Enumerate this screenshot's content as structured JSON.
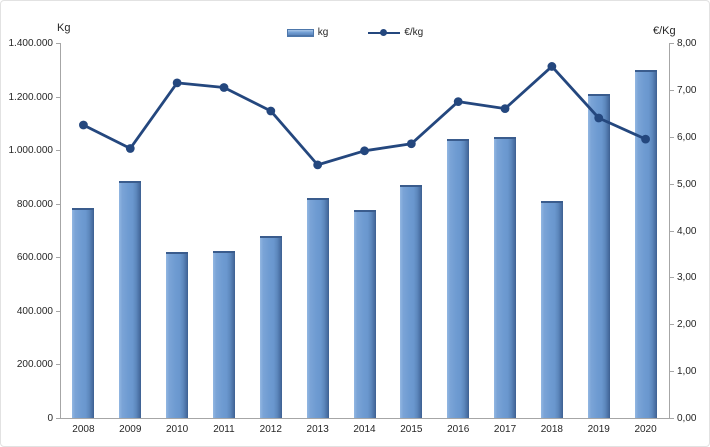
{
  "chart_data": {
    "type": "combo_bar_line",
    "title": "",
    "categories": [
      "2008",
      "2009",
      "2010",
      "2011",
      "2012",
      "2013",
      "2014",
      "2015",
      "2016",
      "2017",
      "2018",
      "2019",
      "2020"
    ],
    "series": [
      {
        "name": "kg",
        "type": "bar",
        "axis": "left",
        "values": [
          785000,
          885000,
          620000,
          625000,
          680000,
          820000,
          775000,
          870000,
          1040000,
          1050000,
          810000,
          1210000,
          1300000
        ]
      },
      {
        "name": "€/kg",
        "type": "line",
        "axis": "right",
        "values": [
          6.25,
          5.75,
          7.15,
          7.05,
          6.55,
          5.4,
          5.7,
          5.85,
          6.75,
          6.6,
          7.5,
          6.4,
          5.95
        ]
      }
    ],
    "left_axis": {
      "title": "Kg",
      "min": 0,
      "max": 1400000,
      "tick_step": 200000,
      "tick_labels": [
        "0",
        "200.000",
        "400.000",
        "600.000",
        "800.000",
        "1.000.000",
        "1.200.000",
        "1.400.000"
      ]
    },
    "right_axis": {
      "title": "€/Kg",
      "min": 0,
      "max": 8,
      "tick_step": 1,
      "tick_labels": [
        "0,00",
        "1,00",
        "2,00",
        "3,00",
        "4,00",
        "5,00",
        "6,00",
        "7,00",
        "8,00"
      ]
    },
    "legend": {
      "position": "top-center",
      "items": [
        {
          "label": "kg",
          "swatch": "bar"
        },
        {
          "label": "€/kg",
          "swatch": "line-marker"
        }
      ]
    },
    "grid": false,
    "colors": {
      "bar_fill": "#6f9cd2",
      "bar_fill_light": "#93b7e2",
      "bar_fill_dark": "#3c5f90",
      "line": "#24477e",
      "axis": "#a6a6a6",
      "text": "#262626"
    }
  }
}
